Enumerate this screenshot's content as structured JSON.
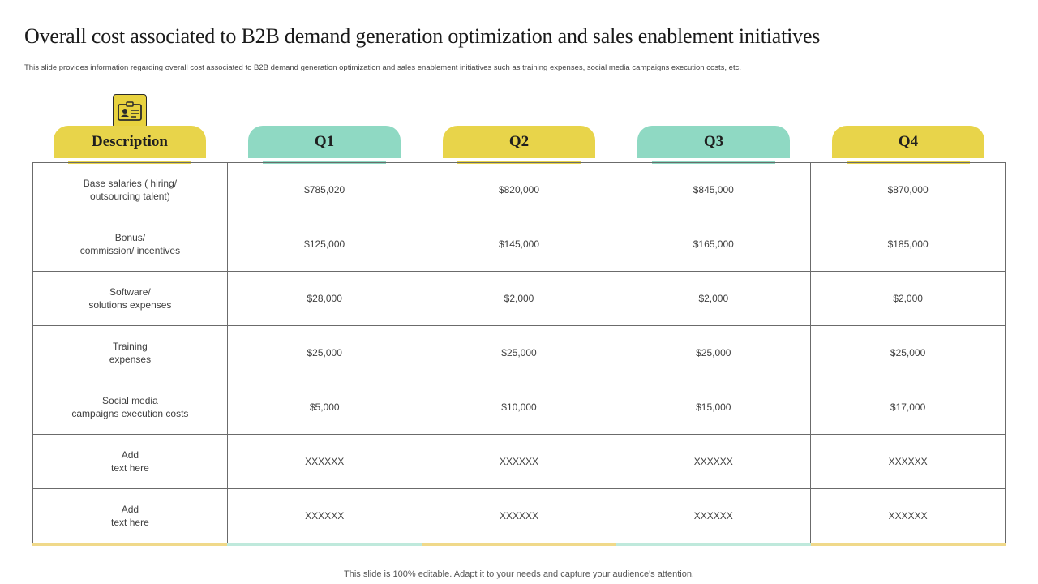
{
  "title": "Overall cost associated to B2B demand generation optimization and sales enablement initiatives",
  "subtitle": "This slide provides information regarding overall cost associated to B2B  demand  generation optimization  and sales enablement  initiatives such as training expenses, social media campaigns execution costs, etc.",
  "icon": "id-badge-icon",
  "colors": {
    "yellow": "#e8d44a",
    "teal": "#8fd9c3"
  },
  "headers": [
    "Description",
    "Q1",
    "Q2",
    "Q3",
    "Q4"
  ],
  "rows": [
    {
      "label": [
        "Base salaries ( hiring/",
        "outsourcing talent)"
      ],
      "values": [
        "$785,020",
        "$820,000",
        "$845,000",
        "$870,000"
      ]
    },
    {
      "label": [
        "Bonus/",
        "commission/ incentives"
      ],
      "values": [
        "$125,000",
        "$145,000",
        "$165,000",
        "$185,000"
      ]
    },
    {
      "label": [
        "Software/",
        "solutions  expenses"
      ],
      "values": [
        "$28,000",
        "$2,000",
        "$2,000",
        "$2,000"
      ]
    },
    {
      "label": [
        "Training",
        "expenses"
      ],
      "values": [
        "$25,000",
        "$25,000",
        "$25,000",
        "$25,000"
      ]
    },
    {
      "label": [
        "Social media",
        "campaigns execution costs"
      ],
      "values": [
        "$5,000",
        "$10,000",
        "$15,000",
        "$17,000"
      ]
    },
    {
      "label": [
        "Add",
        "text here"
      ],
      "values": [
        "XXXXXX",
        "XXXXXX",
        "XXXXXX",
        "XXXXXX"
      ]
    },
    {
      "label": [
        "Add",
        "text here"
      ],
      "values": [
        "XXXXXX",
        "XXXXXX",
        "XXXXXX",
        "XXXXXX"
      ]
    }
  ],
  "footer": "This slide is 100% editable. Adapt it to your needs and capture your audience's attention."
}
